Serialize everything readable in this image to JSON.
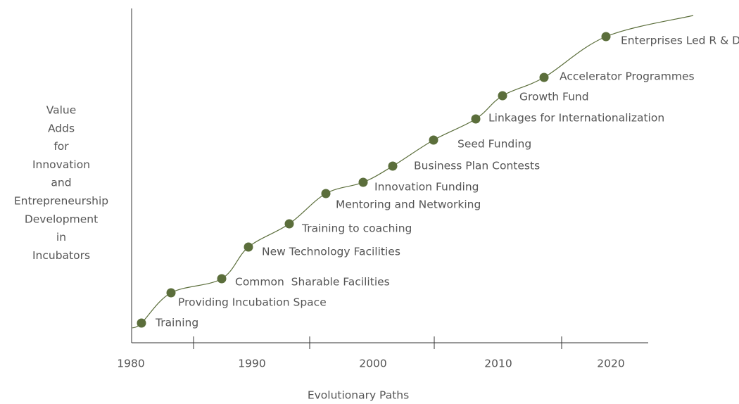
{
  "y_axis_label": [
    "Value",
    "Adds",
    "for",
    "Innovation",
    "and",
    "Entrepreneurship",
    "Development",
    "in",
    "Incubators"
  ],
  "x_axis_label": "Evolutionary Paths",
  "x_labels": [
    "1980",
    "1990",
    "2000",
    "2010",
    "2020"
  ],
  "nodes": [
    {
      "label": "Training"
    },
    {
      "label": "Providing Incubation Space"
    },
    {
      "label": "Common  Sharable Facilities"
    },
    {
      "label": "New Technology Facilities"
    },
    {
      "label": "Training to coaching"
    },
    {
      "label": "Mentoring and Networking"
    },
    {
      "label": "Innovation Funding"
    },
    {
      "label": "Business Plan Contests"
    },
    {
      "label": "Seed Funding"
    },
    {
      "label": "Linkages for Internationalization"
    },
    {
      "label": "Growth Fund"
    },
    {
      "label": "Accelerator Programmes"
    },
    {
      "label": "Enterprises Led R & D"
    }
  ]
}
